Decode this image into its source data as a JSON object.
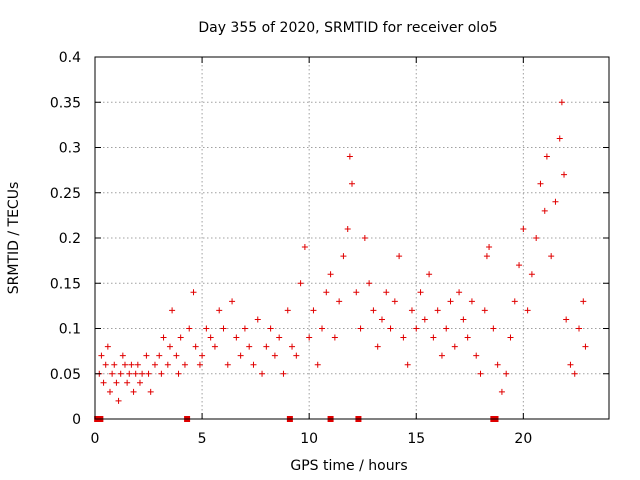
{
  "chart_data": {
    "type": "scatter",
    "title": "Day 355 of 2020, SRMTID for receiver olo5",
    "xlabel": "GPS time / hours",
    "ylabel": "SRMTID / TECUs",
    "xlim": [
      0,
      24
    ],
    "ylim": [
      0,
      0.4
    ],
    "xticks": [
      0,
      5,
      10,
      15,
      20
    ],
    "xtick_labels": [
      "0",
      "5",
      "10",
      "15",
      "20"
    ],
    "yticks": [
      0,
      0.05,
      0.1,
      0.15,
      0.2,
      0.25,
      0.3,
      0.35,
      0.4
    ],
    "ytick_labels": [
      "0",
      "0.05",
      "0.1",
      "0.15",
      "0.2",
      "0.25",
      "0.3",
      "0.35",
      "0.4"
    ],
    "grid": true,
    "marker": "plus",
    "color": "#e00000",
    "series": [
      {
        "name": "SRMTID",
        "points": [
          [
            0.2,
            0.05
          ],
          [
            0.3,
            0.07
          ],
          [
            0.4,
            0.04
          ],
          [
            0.5,
            0.06
          ],
          [
            0.6,
            0.08
          ],
          [
            0.7,
            0.03
          ],
          [
            0.8,
            0.05
          ],
          [
            0.9,
            0.06
          ],
          [
            1.0,
            0.04
          ],
          [
            1.1,
            0.02
          ],
          [
            1.2,
            0.05
          ],
          [
            1.3,
            0.07
          ],
          [
            1.4,
            0.06
          ],
          [
            1.5,
            0.04
          ],
          [
            1.6,
            0.05
          ],
          [
            1.7,
            0.06
          ],
          [
            1.8,
            0.03
          ],
          [
            1.9,
            0.05
          ],
          [
            2.0,
            0.06
          ],
          [
            2.1,
            0.04
          ],
          [
            2.2,
            0.05
          ],
          [
            2.4,
            0.07
          ],
          [
            2.5,
            0.05
          ],
          [
            2.6,
            0.03
          ],
          [
            2.8,
            0.06
          ],
          [
            3.0,
            0.07
          ],
          [
            3.1,
            0.05
          ],
          [
            3.2,
            0.09
          ],
          [
            3.4,
            0.06
          ],
          [
            3.5,
            0.08
          ],
          [
            3.6,
            0.12
          ],
          [
            3.8,
            0.07
          ],
          [
            3.9,
            0.05
          ],
          [
            4.0,
            0.09
          ],
          [
            4.2,
            0.06
          ],
          [
            4.4,
            0.1
          ],
          [
            4.6,
            0.14
          ],
          [
            4.7,
            0.08
          ],
          [
            4.9,
            0.06
          ],
          [
            5.0,
            0.07
          ],
          [
            5.2,
            0.1
          ],
          [
            5.4,
            0.09
          ],
          [
            5.6,
            0.08
          ],
          [
            5.8,
            0.12
          ],
          [
            6.0,
            0.1
          ],
          [
            6.2,
            0.06
          ],
          [
            6.4,
            0.13
          ],
          [
            6.6,
            0.09
          ],
          [
            6.8,
            0.07
          ],
          [
            7.0,
            0.1
          ],
          [
            7.2,
            0.08
          ],
          [
            7.4,
            0.06
          ],
          [
            7.6,
            0.11
          ],
          [
            7.8,
            0.05
          ],
          [
            8.0,
            0.08
          ],
          [
            8.2,
            0.1
          ],
          [
            8.4,
            0.07
          ],
          [
            8.6,
            0.09
          ],
          [
            8.8,
            0.05
          ],
          [
            9.0,
            0.12
          ],
          [
            9.2,
            0.08
          ],
          [
            9.4,
            0.07
          ],
          [
            9.6,
            0.15
          ],
          [
            9.8,
            0.19
          ],
          [
            10.0,
            0.09
          ],
          [
            10.2,
            0.12
          ],
          [
            10.4,
            0.06
          ],
          [
            10.6,
            0.1
          ],
          [
            10.8,
            0.14
          ],
          [
            11.0,
            0.16
          ],
          [
            11.2,
            0.09
          ],
          [
            11.4,
            0.13
          ],
          [
            11.6,
            0.18
          ],
          [
            11.8,
            0.21
          ],
          [
            11.9,
            0.29
          ],
          [
            12.0,
            0.26
          ],
          [
            12.2,
            0.14
          ],
          [
            12.4,
            0.1
          ],
          [
            12.6,
            0.2
          ],
          [
            12.8,
            0.15
          ],
          [
            13.0,
            0.12
          ],
          [
            13.2,
            0.08
          ],
          [
            13.4,
            0.11
          ],
          [
            13.6,
            0.14
          ],
          [
            13.8,
            0.1
          ],
          [
            14.0,
            0.13
          ],
          [
            14.2,
            0.18
          ],
          [
            14.4,
            0.09
          ],
          [
            14.6,
            0.06
          ],
          [
            14.8,
            0.12
          ],
          [
            15.0,
            0.1
          ],
          [
            15.2,
            0.14
          ],
          [
            15.4,
            0.11
          ],
          [
            15.6,
            0.16
          ],
          [
            15.8,
            0.09
          ],
          [
            16.0,
            0.12
          ],
          [
            16.2,
            0.07
          ],
          [
            16.4,
            0.1
          ],
          [
            16.6,
            0.13
          ],
          [
            16.8,
            0.08
          ],
          [
            17.0,
            0.14
          ],
          [
            17.2,
            0.11
          ],
          [
            17.4,
            0.09
          ],
          [
            17.6,
            0.13
          ],
          [
            17.8,
            0.07
          ],
          [
            18.0,
            0.05
          ],
          [
            18.2,
            0.12
          ],
          [
            18.3,
            0.18
          ],
          [
            18.4,
            0.19
          ],
          [
            18.6,
            0.1
          ],
          [
            18.8,
            0.06
          ],
          [
            19.0,
            0.03
          ],
          [
            19.2,
            0.05
          ],
          [
            19.4,
            0.09
          ],
          [
            19.6,
            0.13
          ],
          [
            19.8,
            0.17
          ],
          [
            20.0,
            0.21
          ],
          [
            20.2,
            0.12
          ],
          [
            20.4,
            0.16
          ],
          [
            20.6,
            0.2
          ],
          [
            20.8,
            0.26
          ],
          [
            21.0,
            0.23
          ],
          [
            21.1,
            0.29
          ],
          [
            21.3,
            0.18
          ],
          [
            21.5,
            0.24
          ],
          [
            21.7,
            0.31
          ],
          [
            21.8,
            0.35
          ],
          [
            21.9,
            0.27
          ],
          [
            22.0,
            0.11
          ],
          [
            22.2,
            0.06
          ],
          [
            22.4,
            0.05
          ],
          [
            22.6,
            0.1
          ],
          [
            22.8,
            0.13
          ],
          [
            22.9,
            0.08
          ]
        ]
      }
    ],
    "zero_value_hours": [
      0.1,
      0.25,
      4.3,
      9.1,
      11.0,
      12.3,
      18.6,
      18.7
    ]
  }
}
